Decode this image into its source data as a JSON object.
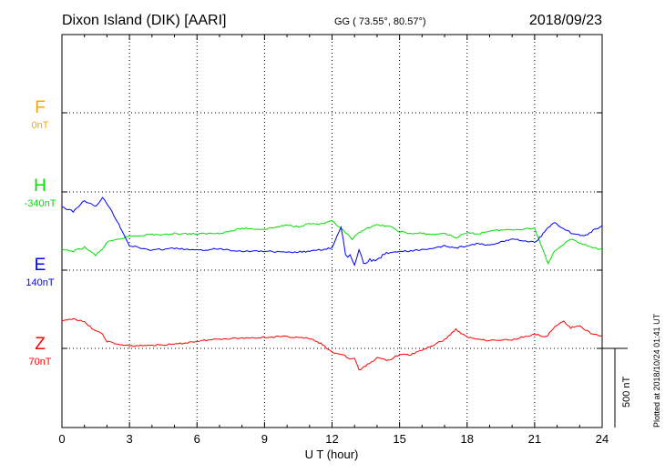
{
  "header": {
    "station": "Dixon Island (DIK)  [AARI]",
    "coords": "GG ( 73.55°,  80.57°)",
    "date": "2018/09/23"
  },
  "footer": {
    "plotted": "Plotted at 2018/10/24 01:41 UT"
  },
  "scale_bar": {
    "label": "500 nT",
    "value_nT": 500
  },
  "chart_data": {
    "type": "line",
    "xlabel": "U T (hour)",
    "xlim": [
      0,
      24
    ],
    "xticks": [
      "0",
      "3",
      "6",
      "9",
      "12",
      "15",
      "18",
      "21",
      "24"
    ],
    "grid": true,
    "series": [
      {
        "name": "F",
        "baseline": "0nT",
        "color": "#f5a800",
        "x": [
          0,
          24
        ],
        "y": [
          0,
          0
        ]
      },
      {
        "name": "H",
        "baseline": "-340nT",
        "color": "#00e000",
        "x": [
          0,
          0.5,
          1,
          1.5,
          1.8,
          2,
          2.5,
          3,
          3.5,
          4,
          4.5,
          5,
          6,
          7,
          7.5,
          8,
          9,
          10,
          10.5,
          11,
          11.5,
          12,
          12.3,
          12.6,
          12.9,
          13.2,
          13.5,
          14,
          14.5,
          15,
          15.5,
          16,
          16.5,
          17,
          17.5,
          17.8,
          18,
          18.5,
          19,
          20,
          21,
          21.3,
          21.6,
          21.9,
          22.2,
          22.6,
          23,
          23.5,
          24
        ],
        "y": [
          -365,
          -375,
          -350,
          -400,
          -360,
          -320,
          -300,
          -280,
          -275,
          -268,
          -272,
          -262,
          -266,
          -260,
          -248,
          -230,
          -236,
          -210,
          -218,
          -200,
          -204,
          -185,
          -220,
          -258,
          -300,
          -260,
          -230,
          -210,
          -215,
          -250,
          -264,
          -262,
          -270,
          -260,
          -290,
          -270,
          -260,
          -265,
          -245,
          -238,
          -230,
          -340,
          -450,
          -370,
          -340,
          -300,
          -320,
          -350,
          -365
        ]
      },
      {
        "name": "E",
        "baseline": "140nT",
        "color": "#0000ff",
        "x": [
          0,
          0.5,
          1,
          1.5,
          1.8,
          2,
          2.3,
          2.6,
          3,
          3.5,
          4,
          4.5,
          5,
          6,
          7,
          8,
          9,
          10,
          11,
          12,
          12.4,
          12.6,
          12.8,
          13,
          13.2,
          13.4,
          13.6,
          14,
          14.5,
          15,
          15.5,
          16,
          16.5,
          17,
          17.5,
          18,
          18.5,
          19,
          20,
          21,
          21.3,
          21.6,
          21.9,
          22.3,
          22.7,
          23.2,
          23.6,
          24
        ],
        "y": [
          400,
          370,
          440,
          400,
          460,
          420,
          350,
          270,
          155,
          140,
          125,
          133,
          138,
          125,
          135,
          120,
          120,
          111,
          118,
          140,
          270,
          90,
          90,
          35,
          130,
          50,
          55,
          75,
          105,
          118,
          120,
          132,
          134,
          155,
          140,
          155,
          168,
          155,
          198,
          175,
          215,
          270,
          300,
          260,
          230,
          215,
          250,
          280
        ]
      },
      {
        "name": "Z",
        "baseline": "70nT",
        "color": "#ff0000",
        "x": [
          0,
          0.5,
          1,
          1.5,
          1.8,
          2,
          2.5,
          3,
          4,
          5,
          6,
          7,
          8,
          9,
          10,
          11,
          11.5,
          12,
          12.5,
          12.8,
          13,
          13.2,
          13.5,
          14,
          14.5,
          15,
          15.5,
          16,
          16.5,
          17,
          17.5,
          18,
          19,
          20,
          21,
          21.5,
          22,
          22.3,
          22.6,
          23,
          23.5,
          24
        ],
        "y": [
          170,
          190,
          165,
          110,
          90,
          45,
          25,
          15,
          20,
          25,
          45,
          60,
          65,
          70,
          75,
          62,
          30,
          -25,
          -40,
          -70,
          -60,
          -140,
          -110,
          -60,
          -75,
          -40,
          -40,
          -10,
          20,
          55,
          120,
          70,
          50,
          55,
          90,
          70,
          150,
          170,
          130,
          140,
          95,
          80
        ]
      }
    ]
  }
}
